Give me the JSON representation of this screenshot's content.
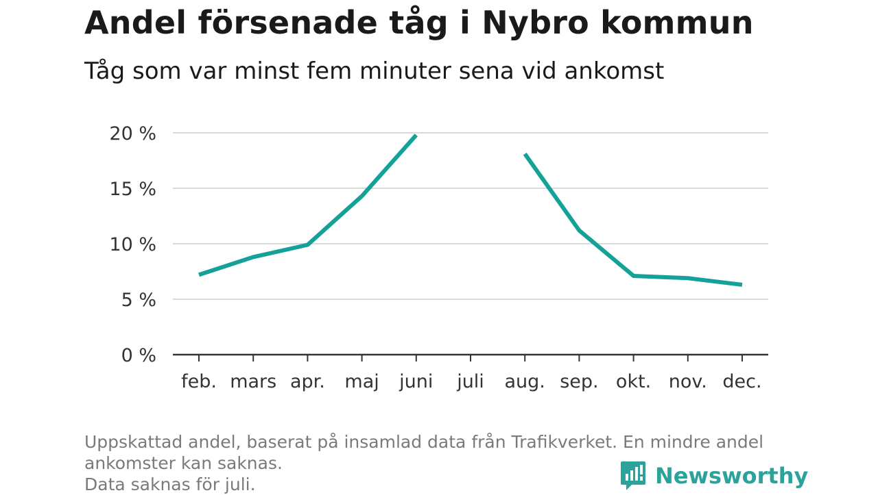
{
  "header": {
    "title": "Andel försenade tåg i Nybro kommun",
    "subtitle": "Tåg som var minst fem minuter sena vid ankomst"
  },
  "chart_data": {
    "type": "line",
    "title": "Andel försenade tåg i Nybro kommun",
    "subtitle": "Tåg som var minst fem minuter sena vid ankomst",
    "categories": [
      "feb.",
      "mars",
      "apr.",
      "maj",
      "juni",
      "juli",
      "aug.",
      "sep.",
      "okt.",
      "nov.",
      "dec."
    ],
    "series": [
      {
        "values": [
          7.2,
          8.8,
          9.9,
          14.3,
          19.8,
          null,
          18.1,
          11.2,
          7.1,
          6.9,
          6.3
        ]
      }
    ],
    "yticks": [
      "0 %",
      "5 %",
      "10 %",
      "15 %",
      "20 %"
    ],
    "ylim": [
      0,
      20
    ],
    "grid": true,
    "line_color": "#14a197",
    "grid_color": "#d9d9d9"
  },
  "footnote": {
    "line1": "Uppskattad andel, baserat på insamlad data från Trafikverket. En mindre andel",
    "line2": "ankomster kan saknas.",
    "line3": "Data saknas för juli."
  },
  "brand": {
    "name": "Newsworthy",
    "icon": "newsworthy-logo-icon",
    "color": "#2ba39a"
  }
}
